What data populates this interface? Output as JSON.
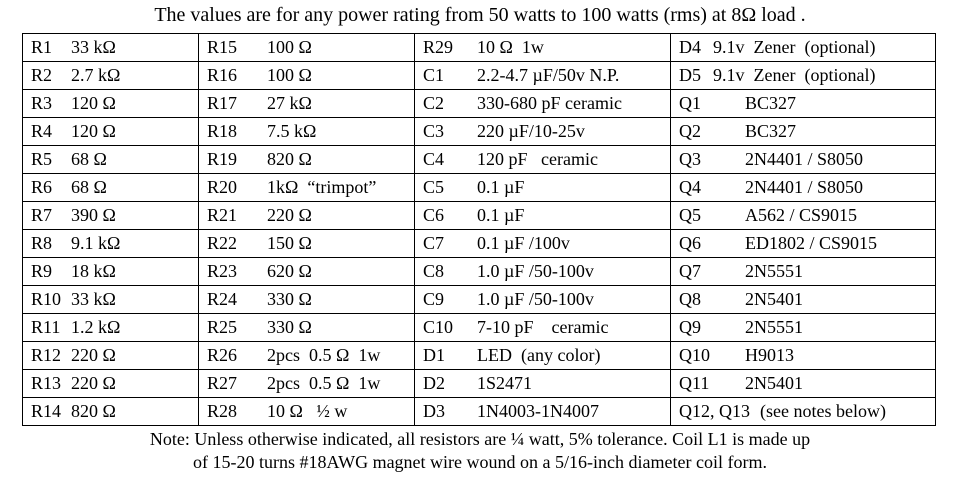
{
  "title": "The values are for any power rating from 50 watts to 100 watts (rms) at 8Ω load .",
  "table": {
    "rows": [
      [
        {
          "ref": "R1",
          "value": "33 kΩ"
        },
        {
          "ref": "R15",
          "value": "100 Ω"
        },
        {
          "ref": "R29",
          "value": "10 Ω  1w"
        },
        {
          "ref": "D4",
          "value": "9.1v  Zener  (optional)"
        }
      ],
      [
        {
          "ref": "R2",
          "value": "2.7 kΩ"
        },
        {
          "ref": "R16",
          "value": "100 Ω"
        },
        {
          "ref": "C1",
          "value": "2.2-4.7 µF/50v N.P."
        },
        {
          "ref": "D5",
          "value": "9.1v  Zener  (optional)"
        }
      ],
      [
        {
          "ref": "R3",
          "value": "120 Ω"
        },
        {
          "ref": "R17",
          "value": "27 kΩ"
        },
        {
          "ref": "C2",
          "value": "330-680 pF ceramic"
        },
        {
          "ref": "Q1",
          "value": "BC327"
        }
      ],
      [
        {
          "ref": "R4",
          "value": "120 Ω"
        },
        {
          "ref": "R18",
          "value": "7.5 kΩ"
        },
        {
          "ref": "C3",
          "value": "220 µF/10-25v"
        },
        {
          "ref": "Q2",
          "value": "BC327"
        }
      ],
      [
        {
          "ref": "R5",
          "value": "68 Ω"
        },
        {
          "ref": "R19",
          "value": "820 Ω"
        },
        {
          "ref": "C4",
          "value": "120 pF   ceramic"
        },
        {
          "ref": "Q3",
          "value": "2N4401 / S8050"
        }
      ],
      [
        {
          "ref": "R6",
          "value": "68 Ω"
        },
        {
          "ref": "R20",
          "value": "1kΩ  “trimpot”"
        },
        {
          "ref": "C5",
          "value": "0.1 µF"
        },
        {
          "ref": "Q4",
          "value": "2N4401 / S8050"
        }
      ],
      [
        {
          "ref": "R7",
          "value": "390 Ω"
        },
        {
          "ref": "R21",
          "value": "220 Ω"
        },
        {
          "ref": "C6",
          "value": "0.1 µF"
        },
        {
          "ref": "Q5",
          "value": "A562 / CS9015"
        }
      ],
      [
        {
          "ref": "R8",
          "value": "9.1 kΩ"
        },
        {
          "ref": "R22",
          "value": "150 Ω"
        },
        {
          "ref": "C7",
          "value": "0.1 µF /100v"
        },
        {
          "ref": "Q6",
          "value": "ED1802 / CS9015"
        }
      ],
      [
        {
          "ref": "R9",
          "value": "18 kΩ"
        },
        {
          "ref": "R23",
          "value": "620 Ω"
        },
        {
          "ref": "C8",
          "value": "1.0 µF /50-100v"
        },
        {
          "ref": "Q7",
          "value": "2N5551"
        }
      ],
      [
        {
          "ref": "R10",
          "value": "33 kΩ"
        },
        {
          "ref": "R24",
          "value": "330 Ω"
        },
        {
          "ref": "C9",
          "value": "1.0 µF /50-100v"
        },
        {
          "ref": "Q8",
          "value": "2N5401"
        }
      ],
      [
        {
          "ref": "R11",
          "value": "1.2 kΩ"
        },
        {
          "ref": "R25",
          "value": "330 Ω"
        },
        {
          "ref": "C10",
          "value": "7-10 pF    ceramic"
        },
        {
          "ref": "Q9",
          "value": "2N5551"
        }
      ],
      [
        {
          "ref": "R12",
          "value": "220 Ω"
        },
        {
          "ref": "R26",
          "value": "2pcs  0.5 Ω  1w"
        },
        {
          "ref": "D1",
          "value": "LED  (any color)"
        },
        {
          "ref": "Q10",
          "value": "H9013"
        }
      ],
      [
        {
          "ref": "R13",
          "value": "220 Ω"
        },
        {
          "ref": "R27",
          "value": "2pcs  0.5 Ω  1w"
        },
        {
          "ref": "D2",
          "value": "1S2471"
        },
        {
          "ref": "Q11",
          "value": "2N5401"
        }
      ],
      [
        {
          "ref": "R14",
          "value": "820 Ω"
        },
        {
          "ref": "R28",
          "value": "10 Ω   ½ w"
        },
        {
          "ref": "D3",
          "value": "1N4003-1N4007"
        },
        {
          "ref": "Q12, Q13",
          "value": "(see notes below)"
        }
      ]
    ]
  },
  "note": [
    "Note: Unless otherwise indicated, all resistors are ¼ watt, 5% tolerance. Coil L1 is made up",
    "of 15-20 turns #18AWG magnet wire wound on a 5/16-inch diameter coil form."
  ]
}
